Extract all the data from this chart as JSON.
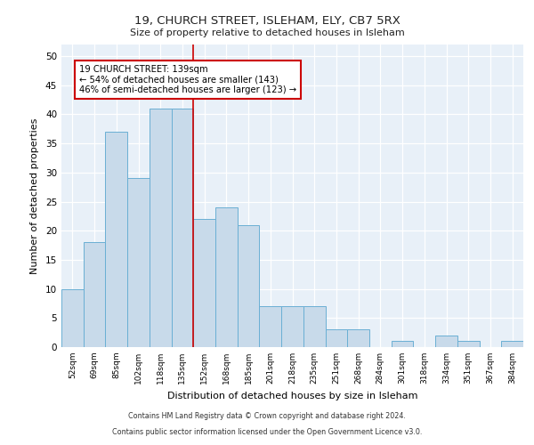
{
  "title1": "19, CHURCH STREET, ISLEHAM, ELY, CB7 5RX",
  "title2": "Size of property relative to detached houses in Isleham",
  "xlabel": "Distribution of detached houses by size in Isleham",
  "ylabel": "Number of detached properties",
  "categories": [
    "52sqm",
    "69sqm",
    "85sqm",
    "102sqm",
    "118sqm",
    "135sqm",
    "152sqm",
    "168sqm",
    "185sqm",
    "201sqm",
    "218sqm",
    "235sqm",
    "251sqm",
    "268sqm",
    "284sqm",
    "301sqm",
    "318sqm",
    "334sqm",
    "351sqm",
    "367sqm",
    "384sqm"
  ],
  "values": [
    10,
    18,
    37,
    29,
    41,
    41,
    22,
    24,
    21,
    7,
    7,
    7,
    3,
    3,
    0,
    1,
    0,
    2,
    1,
    0,
    1
  ],
  "bar_color": "#c8daea",
  "bar_edge_color": "#6aafd4",
  "vline_x": 5.5,
  "vline_color": "#cc0000",
  "annotation_text": "19 CHURCH STREET: 139sqm\n← 54% of detached houses are smaller (143)\n46% of semi-detached houses are larger (123) →",
  "annotation_box_color": "#ffffff",
  "annotation_box_edge": "#cc0000",
  "ylim": [
    0,
    52
  ],
  "yticks": [
    0,
    5,
    10,
    15,
    20,
    25,
    30,
    35,
    40,
    45,
    50
  ],
  "footer1": "Contains HM Land Registry data © Crown copyright and database right 2024.",
  "footer2": "Contains public sector information licensed under the Open Government Licence v3.0.",
  "bg_color": "#e8f0f8"
}
